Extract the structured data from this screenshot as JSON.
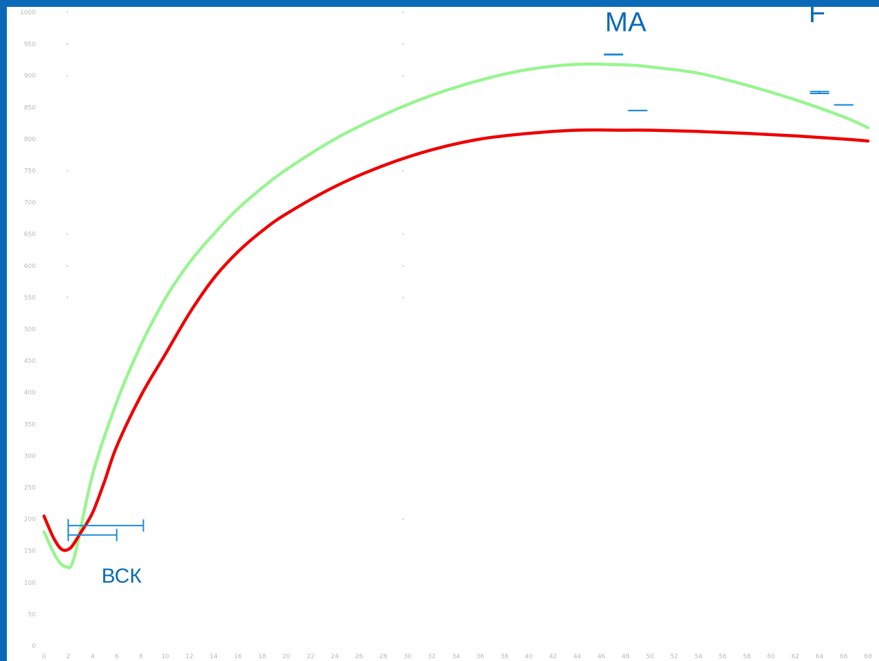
{
  "chart_data": {
    "type": "line",
    "title": "",
    "xlabel": "",
    "ylabel": "",
    "x_ticks": [
      0,
      2,
      4,
      6,
      8,
      10,
      12,
      14,
      16,
      18,
      20,
      22,
      24,
      26,
      28,
      30,
      32,
      34,
      36,
      38,
      40,
      42,
      44,
      46,
      48,
      50,
      52,
      54,
      56,
      58,
      60,
      62,
      64,
      66,
      68
    ],
    "y_ticks": [
      0,
      50,
      100,
      150,
      200,
      250,
      300,
      350,
      400,
      450,
      500,
      550,
      600,
      650,
      700,
      750,
      800,
      850,
      900,
      950,
      1000
    ],
    "xlim": [
      0,
      68
    ],
    "ylim": [
      0,
      1000
    ],
    "grid": false,
    "series": [
      {
        "color": "#98f590",
        "x": [
          0,
          1,
          1.8,
          2.5,
          4,
          6,
          8,
          10,
          12,
          14,
          16,
          18,
          20,
          24,
          28,
          32,
          36,
          40,
          44,
          48,
          50,
          54,
          58,
          62,
          66,
          68
        ],
        "y": [
          180,
          140,
          125,
          140,
          270,
          385,
          475,
          548,
          605,
          650,
          690,
          723,
          752,
          800,
          838,
          869,
          893,
          910,
          918,
          917,
          914,
          904,
          885,
          862,
          835,
          818
        ]
      },
      {
        "color": "#ee0000",
        "x": [
          0,
          0.8,
          1.5,
          2.2,
          3,
          4,
          5,
          6,
          8,
          10,
          12,
          14,
          16,
          18,
          20,
          24,
          28,
          32,
          36,
          40,
          44,
          48,
          50,
          54,
          58,
          62,
          66,
          68
        ],
        "y": [
          205,
          170,
          152,
          155,
          178,
          210,
          260,
          315,
          395,
          460,
          525,
          580,
          622,
          655,
          682,
          725,
          758,
          783,
          800,
          809,
          814,
          814,
          814,
          812,
          809,
          805,
          800,
          797
        ]
      }
    ],
    "error_bars": [
      {
        "x": 2,
        "xerr_right": 4,
        "y": 175,
        "label": ""
      },
      {
        "x": 2,
        "xerr_right": 6.2,
        "y": 190,
        "label": ""
      },
      {
        "x": 47,
        "y": 917,
        "yerr": [
          933,
          934
        ],
        "label": "MA"
      },
      {
        "x": 49,
        "y": 828,
        "yerr": [
          845,
          845
        ],
        "label": ""
      },
      {
        "x": 64,
        "y": 855,
        "yerr": [
          875,
          872
        ],
        "label": "F"
      },
      {
        "x": 66,
        "y": 835,
        "yerr": [
          854,
          854
        ],
        "label": ""
      }
    ],
    "annotations": [
      {
        "text": "MA",
        "x": 48,
        "y": 970
      },
      {
        "text": "F",
        "x": 63.8,
        "y": 985
      },
      {
        "text": "ВСК",
        "x": 6.4,
        "y": 100
      }
    ],
    "tick_label_color": "#b8b8b8",
    "background": "#0a6ab8"
  }
}
